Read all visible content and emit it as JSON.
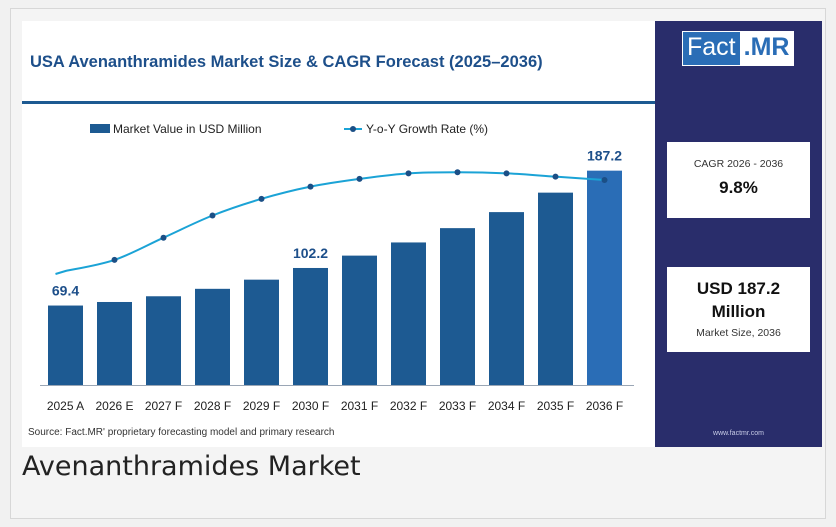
{
  "infographic": {
    "title": "USA Avenanthramides Market Size & CAGR Forecast (2025–2036)",
    "source": "Source: Fact.MR' proprietary forecasting model and primary research"
  },
  "brand": {
    "logo_left": "Fact",
    "logo_right": ".MR",
    "website": "www.factmr.com",
    "panel_color": "#292d6b",
    "accent_color": "#2a6db6"
  },
  "stats": {
    "cagr_label": "CAGR 2026 - 2036",
    "cagr_value": "9.8%",
    "size_value_line1": "USD 187.2",
    "size_value_line2": "Million",
    "size_label": "Market Size, 2036"
  },
  "caption": "Avenanthramides Market",
  "chart_data": {
    "type": "bar",
    "categories": [
      "2025 A",
      "2026 E",
      "2027 F",
      "2028 F",
      "2029 F",
      "2030 F",
      "2031 F",
      "2032 F",
      "2033 F",
      "2034 F",
      "2035 F",
      "2036 F"
    ],
    "series": [
      {
        "name": "Market Value in USD Million",
        "type": "bar",
        "color": "#1d5a92",
        "highlight_color": "#2a6db6",
        "values": [
          69.4,
          72.5,
          77.5,
          84.0,
          92.0,
          102.2,
          113.0,
          124.5,
          137.0,
          151.0,
          168.0,
          187.2
        ],
        "data_labels": {
          "0": "69.4",
          "5": "102.2",
          "11": "187.2"
        }
      },
      {
        "name": "Y-o-Y Growth Rate (%)",
        "type": "line",
        "color": "#1ba3d6",
        "relative_values": [
          0.0,
          0.1,
          0.3,
          0.5,
          0.65,
          0.76,
          0.83,
          0.88,
          0.89,
          0.88,
          0.85,
          0.82
        ]
      }
    ],
    "ylim": [
      0,
      200
    ],
    "grid": false,
    "legend": "top-left"
  }
}
